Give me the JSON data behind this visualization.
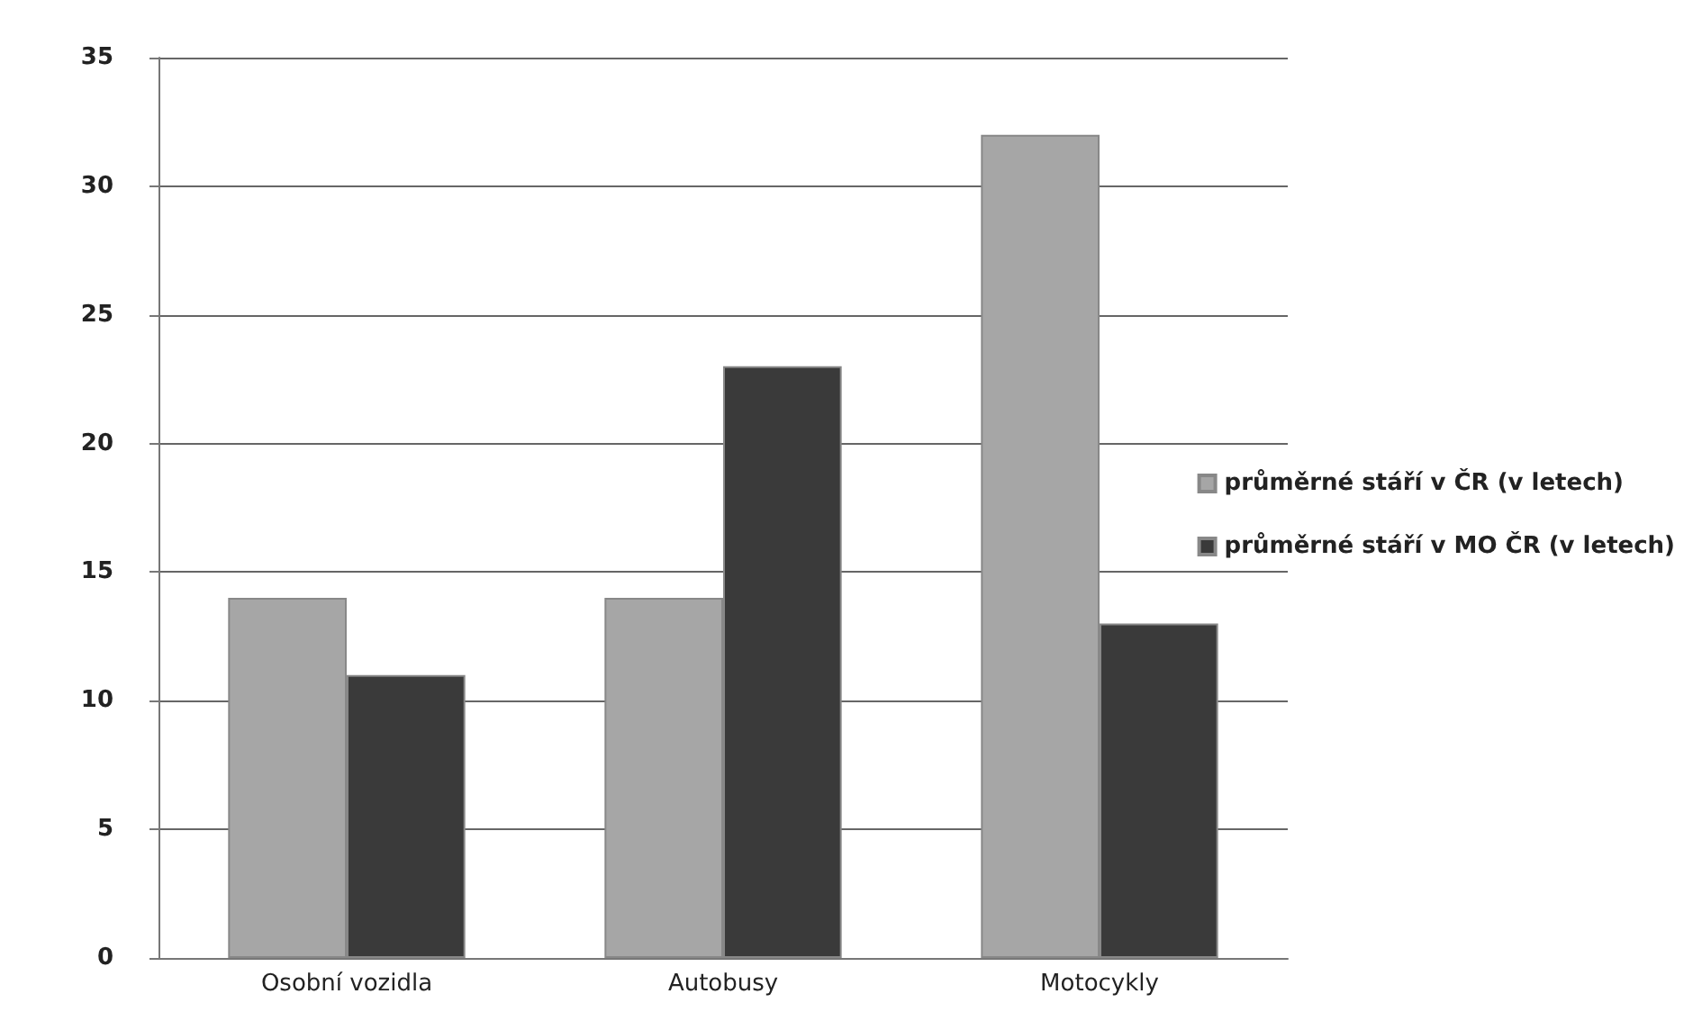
{
  "chart_data": {
    "type": "bar",
    "categories": [
      "Osobní vozidla",
      "Autobusy",
      "Motocykly"
    ],
    "series": [
      {
        "name": "průměrné stáří v ČR (v letech)",
        "color": "#a6a6a6",
        "values": [
          14,
          14,
          32
        ]
      },
      {
        "name": "průměrné stáří v MO ČR (v letech)",
        "color": "#3a3a3a",
        "values": [
          11,
          23,
          13
        ]
      }
    ],
    "ylim": [
      0,
      35
    ],
    "yticks": [
      0,
      5,
      10,
      15,
      20,
      25,
      30,
      35
    ],
    "grid": "y",
    "legend": "right"
  }
}
